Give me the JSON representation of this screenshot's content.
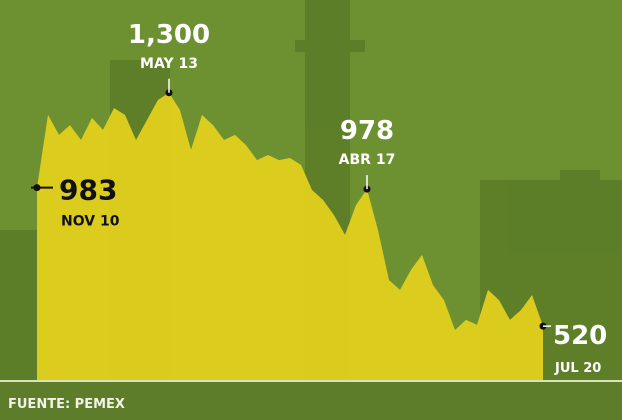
{
  "chart_data": {
    "type": "area",
    "source": "FUENTE: PEMEX",
    "color": "#e6d11c",
    "ylim": [
      340,
      1610
    ],
    "categories": [
      "NOV 10",
      null,
      null,
      null,
      null,
      null,
      null,
      null,
      null,
      null,
      null,
      null,
      "MAY 13",
      null,
      null,
      null,
      null,
      null,
      null,
      null,
      null,
      null,
      null,
      null,
      null,
      null,
      null,
      null,
      null,
      null,
      "ABR 17",
      null,
      null,
      null,
      null,
      null,
      null,
      null,
      null,
      null,
      null,
      null,
      null,
      null,
      null,
      null,
      "JUL 20"
    ],
    "values": [
      983,
      1226,
      1159,
      1192,
      1142,
      1216,
      1176,
      1249,
      1226,
      1142,
      1209,
      1276,
      1300,
      1242,
      1109,
      1226,
      1192,
      1142,
      1159,
      1125,
      1075,
      1092,
      1075,
      1082,
      1059,
      975,
      942,
      891,
      825,
      925,
      978,
      841,
      674,
      641,
      708,
      758,
      657,
      607,
      507,
      541,
      524,
      641,
      607,
      541,
      574,
      624,
      520
    ],
    "value_labels": [
      "983",
      null,
      null,
      null,
      null,
      null,
      null,
      null,
      null,
      null,
      null,
      null,
      "1,300",
      null,
      null,
      null,
      null,
      null,
      null,
      null,
      null,
      null,
      null,
      null,
      null,
      null,
      null,
      null,
      null,
      null,
      "978",
      null,
      null,
      null,
      null,
      null,
      null,
      null,
      null,
      null,
      null,
      null,
      null,
      null,
      null,
      null,
      "520"
    ]
  }
}
